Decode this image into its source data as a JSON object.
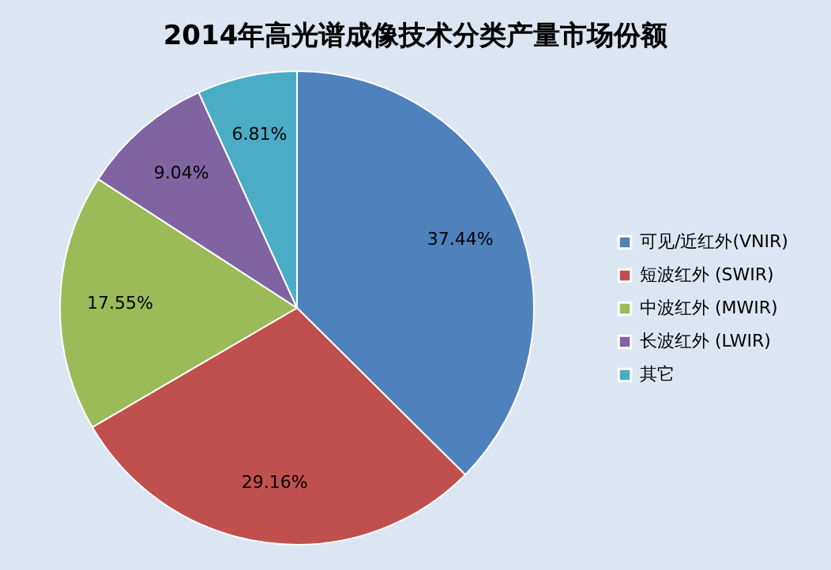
{
  "chart_data": {
    "type": "pie",
    "title": "2014年高光谱成像技术分类产量市场份额",
    "categories": [
      "可见/近红外(VNIR)",
      "短波红外 (SWIR)",
      "中波红外 (MWIR)",
      "长波红外 (LWIR)",
      "其它"
    ],
    "values": [
      37.44,
      29.16,
      17.55,
      9.04,
      6.81
    ],
    "value_labels": [
      "37.44%",
      "29.16%",
      "17.55%",
      "9.04%",
      "6.81%"
    ],
    "colors": [
      "#4f81bd",
      "#c0504d",
      "#9bbb59",
      "#8064a2",
      "#4bacc6"
    ],
    "legend": "right"
  }
}
